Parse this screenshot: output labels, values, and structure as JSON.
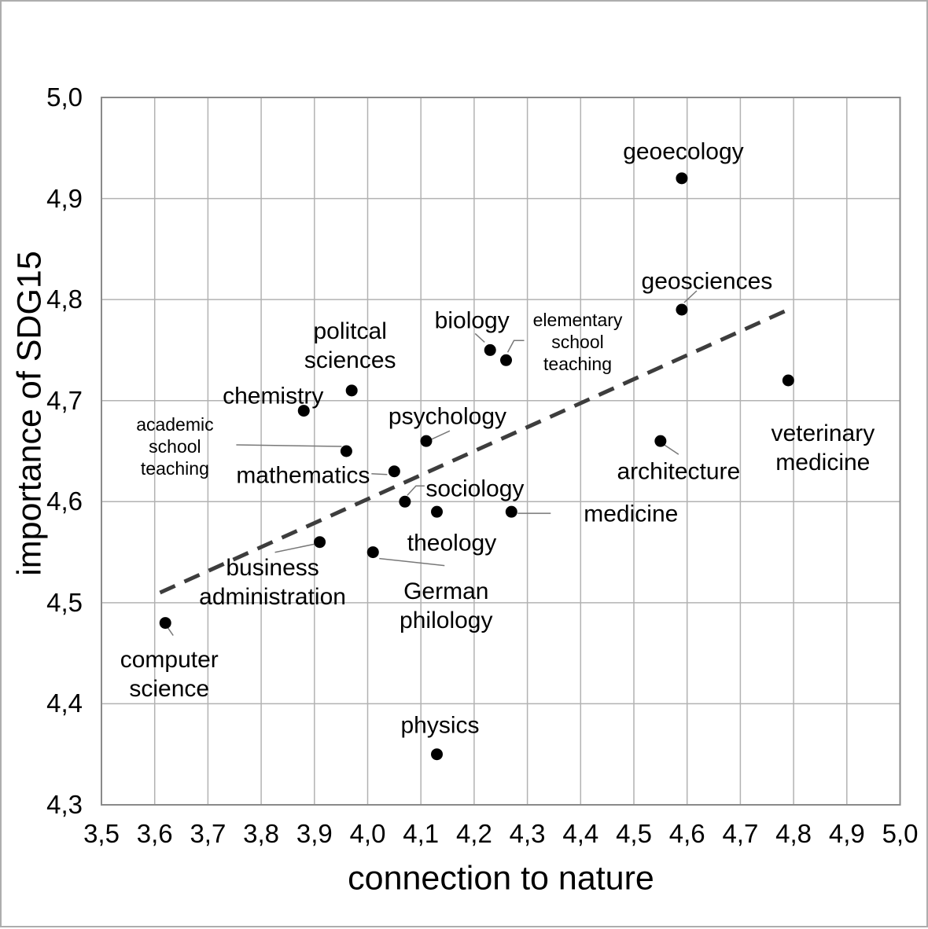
{
  "figure": {
    "background": "#ffffff",
    "outer_border_color": "#adadad"
  },
  "chart_data": {
    "type": "scatter",
    "title": "",
    "xlabel": "connection to nature",
    "ylabel": "importance of SDG15",
    "xlim": [
      3.5,
      5.0
    ],
    "ylim": [
      4.3,
      5.0
    ],
    "grid": "both",
    "decimal_separator": ",",
    "legend": "none",
    "x_ticks": [
      {
        "value": 3.5,
        "label": "3,5"
      },
      {
        "value": 3.6,
        "label": "3,6"
      },
      {
        "value": 3.7,
        "label": "3,7"
      },
      {
        "value": 3.8,
        "label": "3,8"
      },
      {
        "value": 3.9,
        "label": "3,9"
      },
      {
        "value": 4.0,
        "label": "4,0"
      },
      {
        "value": 4.1,
        "label": "4,1"
      },
      {
        "value": 4.2,
        "label": "4,2"
      },
      {
        "value": 4.3,
        "label": "4,3"
      },
      {
        "value": 4.4,
        "label": "4,4"
      },
      {
        "value": 4.5,
        "label": "4,5"
      },
      {
        "value": 4.6,
        "label": "4,6"
      },
      {
        "value": 4.7,
        "label": "4,7"
      },
      {
        "value": 4.8,
        "label": "4,8"
      },
      {
        "value": 4.9,
        "label": "4,9"
      },
      {
        "value": 5.0,
        "label": "5,0"
      }
    ],
    "y_ticks": [
      {
        "value": 5.0,
        "label": "5,0"
      },
      {
        "value": 4.9,
        "label": "4,9"
      },
      {
        "value": 4.8,
        "label": "4,8"
      },
      {
        "value": 4.7,
        "label": "4,7"
      },
      {
        "value": 4.6,
        "label": "4,6"
      },
      {
        "value": 4.5,
        "label": "4,5"
      },
      {
        "value": 4.4,
        "label": "4,4"
      },
      {
        "value": 4.3,
        "label": "4,3"
      }
    ],
    "points": [
      {
        "id": "computer-science",
        "label": "computer science",
        "label_lines": [
          "computer",
          "science"
        ],
        "x": 3.62,
        "y": 4.48,
        "small": false,
        "label_offset": [
          5,
          65
        ],
        "leader": [
          [
            1,
            3
          ],
          [
            10,
            16
          ]
        ]
      },
      {
        "id": "business-administration",
        "label": "business administration",
        "label_lines": [
          "business",
          "administration"
        ],
        "x": 3.91,
        "y": 4.56,
        "small": false,
        "label_offset": [
          -60,
          51
        ],
        "leader": [
          [
            -4,
            2
          ],
          [
            -57,
            13
          ]
        ]
      },
      {
        "id": "chemistry",
        "label": "chemistry",
        "label_lines": [
          "chemistry"
        ],
        "x": 3.88,
        "y": 4.69,
        "small": false,
        "label_offset": [
          -39,
          -19
        ]
      },
      {
        "id": "academic-school-teaching",
        "label": "academic school teaching",
        "label_lines": [
          "academic",
          "school",
          "teaching"
        ],
        "x": 3.96,
        "y": 4.65,
        "small": true,
        "label_offset": [
          -218,
          -6
        ],
        "leader": [
          [
            -140,
            -8
          ],
          [
            -6,
            -6
          ]
        ]
      },
      {
        "id": "politcal-sciences",
        "label": "politcal sciences",
        "label_lines": [
          "politcal",
          "sciences"
        ],
        "x": 3.97,
        "y": 4.71,
        "small": false,
        "label_offset": [
          -2,
          -57
        ]
      },
      {
        "id": "mathematics",
        "label": "mathematics",
        "label_lines": [
          "mathematics"
        ],
        "x": 4.05,
        "y": 4.63,
        "small": false,
        "label_offset": [
          -116,
          5
        ],
        "leader": [
          [
            -29,
            3
          ],
          [
            -9,
            4
          ]
        ]
      },
      {
        "id": "german-philology",
        "label": "German philology",
        "label_lines": [
          "German",
          "philology"
        ],
        "x": 4.01,
        "y": 4.55,
        "small": false,
        "label_offset": [
          93,
          68
        ],
        "leader": [
          [
            8,
            8
          ],
          [
            91,
            17
          ]
        ]
      },
      {
        "id": "sociology",
        "label": "sociology",
        "label_lines": [
          "sociology"
        ],
        "x": 4.07,
        "y": 4.6,
        "small": false,
        "label_offset": [
          89,
          -16
        ],
        "leader": [
          [
            3,
            -8
          ],
          [
            14,
            -20
          ],
          [
            25,
            -20
          ]
        ]
      },
      {
        "id": "psychology",
        "label": "psychology",
        "label_lines": [
          "psychology"
        ],
        "x": 4.11,
        "y": 4.66,
        "small": false,
        "label_offset": [
          27,
          -31
        ],
        "leader": [
          [
            4,
            -1
          ],
          [
            30,
            -13
          ]
        ]
      },
      {
        "id": "theology",
        "label": "theology",
        "label_lines": [
          "theology"
        ],
        "x": 4.13,
        "y": 4.59,
        "small": false,
        "label_offset": [
          19,
          40
        ]
      },
      {
        "id": "physics",
        "label": "physics",
        "label_lines": [
          "physics"
        ],
        "x": 4.13,
        "y": 4.35,
        "small": false,
        "label_offset": [
          4,
          -37
        ]
      },
      {
        "id": "biology",
        "label": "biology",
        "label_lines": [
          "biology"
        ],
        "x": 4.23,
        "y": 4.75,
        "small": false,
        "label_offset": [
          -23,
          -37
        ],
        "leader": [
          [
            -19,
            -21
          ],
          [
            -7,
            -10
          ]
        ]
      },
      {
        "id": "elementary-school-teaching",
        "label": "elementary school teaching",
        "label_lines": [
          "elementary",
          "school",
          "teaching"
        ],
        "x": 4.26,
        "y": 4.74,
        "small": true,
        "label_offset": [
          91,
          -23
        ],
        "leader": [
          [
            2,
            -10
          ],
          [
            10,
            -25
          ],
          [
            23,
            -25
          ]
        ]
      },
      {
        "id": "medicine",
        "label": "medicine",
        "label_lines": [
          "medicine"
        ],
        "x": 4.27,
        "y": 4.59,
        "small": false,
        "label_offset": [
          152,
          3
        ],
        "leader": [
          [
            8,
            2
          ],
          [
            50,
            2
          ]
        ]
      },
      {
        "id": "architecture",
        "label": "architecture",
        "label_lines": [
          "architecture"
        ],
        "x": 4.55,
        "y": 4.66,
        "small": false,
        "label_offset": [
          23,
          39
        ],
        "leader": [
          [
            5,
            5
          ],
          [
            23,
            17
          ]
        ]
      },
      {
        "id": "geosciences",
        "label": "geosciences",
        "label_lines": [
          "geosciences"
        ],
        "x": 4.59,
        "y": 4.79,
        "small": false,
        "label_offset": [
          32,
          -36
        ],
        "leader": [
          [
            3,
            -9
          ],
          [
            19,
            -24
          ]
        ]
      },
      {
        "id": "geoecology",
        "label": "geoecology",
        "label_lines": [
          "geoecology"
        ],
        "x": 4.59,
        "y": 4.92,
        "small": false,
        "label_offset": [
          2,
          -34
        ]
      },
      {
        "id": "veterinary-medicine",
        "label": "veterinary medicine",
        "label_lines": [
          "veterinary",
          "medicine"
        ],
        "x": 4.79,
        "y": 4.72,
        "small": false,
        "label_offset": [
          44,
          86
        ]
      }
    ],
    "trendline": {
      "style": "dashed",
      "x1": 3.61,
      "y1": 4.51,
      "x2": 4.79,
      "y2": 4.79
    },
    "colors": {
      "point": "#000000",
      "trendline": "#3d3d3d",
      "gridline": "#b2b2b2",
      "axis_frame": "#8a8a8a",
      "leader_line": "#787878",
      "text": "#000000"
    }
  }
}
